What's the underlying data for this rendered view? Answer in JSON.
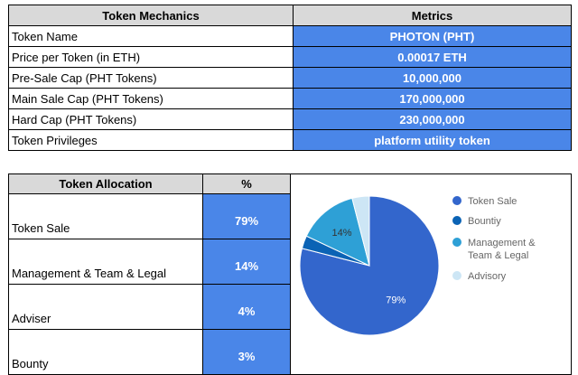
{
  "mechanics": {
    "header_left": "Token Mechanics",
    "header_right": "Metrics",
    "rows": [
      {
        "label": "Token Name",
        "value": "PHOTON (PHT)"
      },
      {
        "label": "Price per Token (in ETH)",
        "value": "0.00017 ETH"
      },
      {
        "label": "Pre-Sale Cap (PHT Tokens)",
        "value": "10,000,000"
      },
      {
        "label": "Main Sale Cap (PHT Tokens)",
        "value": "170,000,000"
      },
      {
        "label": "Hard Cap (PHT Tokens)",
        "value": "230,000,000"
      },
      {
        "label": "Token Privileges",
        "value": "platform utility token"
      }
    ]
  },
  "allocation": {
    "header_label": "Token Allocation",
    "header_pct": "%",
    "rows": [
      {
        "label": "Token Sale",
        "pct": "79%"
      },
      {
        "label": "Management & Team & Legal",
        "pct": "14%"
      },
      {
        "label": "Adviser",
        "pct": "4%"
      },
      {
        "label": "Bounty",
        "pct": "3%"
      }
    ]
  },
  "chart_data": {
    "type": "pie",
    "slices": [
      {
        "name": "Token Sale",
        "value": 79,
        "color": "#3366cc",
        "label": "79%"
      },
      {
        "name": "Bountiy",
        "value": 3,
        "color": "#0b63b5",
        "label": ""
      },
      {
        "name": "Management & Team & Legal",
        "value": 14,
        "color": "#2ea0d6",
        "label": "14%"
      },
      {
        "name": "Advisory",
        "value": 4,
        "color": "#cde6f5",
        "label": ""
      }
    ],
    "legend": [
      {
        "lines": [
          "Token Sale"
        ],
        "color": "#3366cc"
      },
      {
        "lines": [
          "Bountiy"
        ],
        "color": "#0b63b5"
      },
      {
        "lines": [
          "Management &",
          "Team & Legal"
        ],
        "color": "#2ea0d6"
      },
      {
        "lines": [
          "Advisory"
        ],
        "color": "#cde6f5"
      }
    ],
    "legend_position": "right"
  }
}
